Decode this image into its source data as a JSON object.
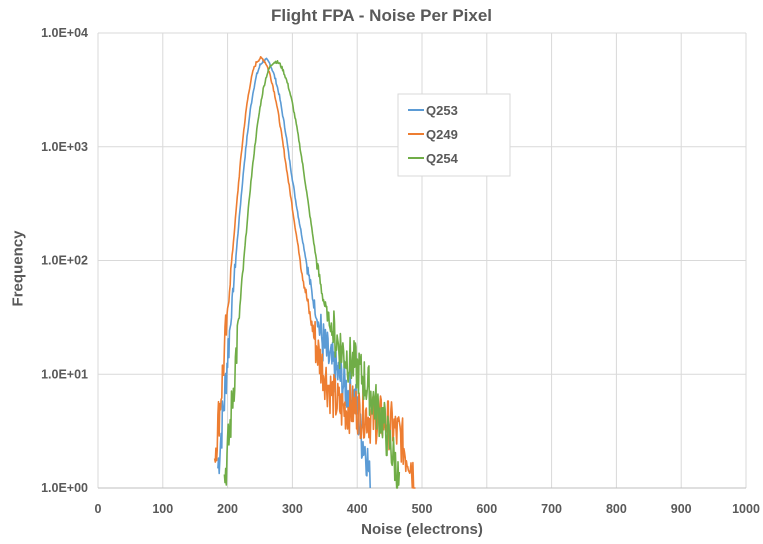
{
  "chart_data": {
    "type": "line",
    "title": "Flight FPA - Noise Per Pixel",
    "xlabel": "Noise (electrons)",
    "ylabel": "Frequency",
    "xlim": [
      0,
      1000
    ],
    "ylim": [
      1,
      10000
    ],
    "yscale": "log",
    "grid": true,
    "legend": "inside top-center",
    "x_ticks": [
      "0",
      "100",
      "200",
      "300",
      "400",
      "500",
      "600",
      "700",
      "800",
      "900",
      "1000"
    ],
    "y_ticks": [
      "1.0E+00",
      "1.0E+01",
      "1.0E+02",
      "1.0E+03",
      "1.0E+04"
    ],
    "series": [
      {
        "name": "Q253",
        "color": "#5B9BD5",
        "x": [
          185,
          190,
          195,
          200,
          205,
          210,
          215,
          220,
          225,
          230,
          235,
          240,
          245,
          250,
          255,
          260,
          265,
          270,
          275,
          280,
          285,
          290,
          295,
          300,
          305,
          310,
          315,
          320,
          325,
          330,
          335,
          340,
          345,
          350,
          355,
          360,
          365,
          370,
          375,
          380,
          385,
          390,
          395,
          400,
          405,
          410,
          415,
          420
        ],
        "y": [
          1.5,
          3,
          6,
          15,
          30,
          70,
          150,
          320,
          650,
          1200,
          2100,
          3200,
          4300,
          5200,
          5700,
          5800,
          5400,
          4600,
          3700,
          2800,
          1900,
          1300,
          800,
          520,
          340,
          230,
          160,
          110,
          75,
          52,
          38,
          28,
          21,
          17,
          14,
          12,
          11,
          10,
          9,
          8,
          7,
          7,
          6,
          5,
          3,
          2.5,
          2,
          1
        ]
      },
      {
        "name": "Q249",
        "color": "#ED7D31",
        "x": [
          180,
          185,
          190,
          195,
          200,
          205,
          210,
          215,
          220,
          225,
          230,
          235,
          240,
          245,
          250,
          255,
          260,
          265,
          270,
          275,
          280,
          285,
          290,
          295,
          300,
          305,
          310,
          315,
          320,
          325,
          330,
          335,
          340,
          345,
          350,
          355,
          360,
          365,
          370,
          375,
          380,
          385,
          390,
          395,
          400,
          405,
          410,
          415,
          420,
          425,
          430,
          435,
          440,
          445,
          450,
          455,
          460,
          465,
          470,
          475,
          480,
          485,
          490
        ],
        "y": [
          2,
          3.5,
          7,
          15,
          35,
          80,
          170,
          360,
          750,
          1400,
          2400,
          3600,
          4800,
          5600,
          6000,
          5900,
          5300,
          4400,
          3400,
          2500,
          1700,
          1100,
          700,
          450,
          290,
          185,
          120,
          80,
          55,
          38,
          27,
          20,
          15,
          12,
          10,
          8,
          7,
          6,
          5.5,
          5,
          5,
          5,
          5,
          5,
          5,
          4.5,
          4.5,
          4.5,
          4,
          4,
          4,
          4,
          4,
          4,
          3.5,
          3.5,
          3,
          3,
          2.5,
          2,
          2,
          1.5,
          1
        ]
      },
      {
        "name": "Q254",
        "color": "#70AD47",
        "x": [
          195,
          200,
          205,
          210,
          215,
          220,
          225,
          230,
          235,
          240,
          245,
          250,
          255,
          260,
          265,
          270,
          275,
          280,
          285,
          290,
          295,
          300,
          305,
          310,
          315,
          320,
          325,
          330,
          335,
          340,
          345,
          350,
          355,
          360,
          365,
          370,
          375,
          380,
          385,
          390,
          395,
          400,
          405,
          410,
          415,
          420,
          425,
          430,
          435,
          440,
          445,
          450,
          455,
          460,
          465
        ],
        "y": [
          1.2,
          2,
          4,
          9,
          20,
          45,
          100,
          210,
          430,
          800,
          1400,
          2200,
          3200,
          4200,
          5000,
          5500,
          5600,
          5400,
          4800,
          4000,
          3200,
          2400,
          1700,
          1150,
          750,
          480,
          300,
          190,
          120,
          80,
          55,
          40,
          32,
          26,
          22,
          19,
          17,
          15,
          14,
          13,
          12,
          11,
          10,
          9,
          8,
          7,
          6,
          5,
          4.5,
          4,
          3,
          2.5,
          2,
          1.5,
          1
        ]
      }
    ]
  }
}
